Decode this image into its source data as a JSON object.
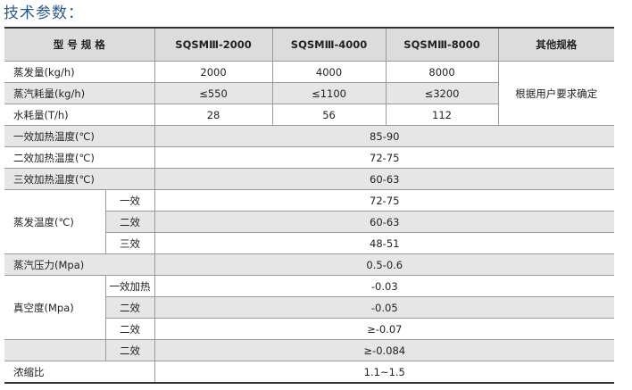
{
  "title": "技术参数：",
  "table": {
    "header": [
      "型 号 规 格",
      "SQSMⅢ-2000",
      "SQSMⅢ-4000",
      "SQSMⅢ-8000",
      "其他规格"
    ],
    "rows": [
      [
        "蒸发量(kg/h)",
        "2000",
        "4000",
        "8000",
        "根据用户要求确定"
      ],
      [
        "蒸汽耗量(kg/h)",
        "≤550",
        "≤1100",
        "≤3200"
      ],
      [
        "水耗量(T/h)",
        "28",
        "56",
        "112"
      ],
      [
        "一效加热温度(℃)",
        "85-90"
      ],
      [
        "二效加热温度(℃)",
        "72-75"
      ],
      [
        "三效加热温度(℃)",
        "60-63"
      ],
      [
        "蒸发温度(℃)",
        "一效",
        "72-75"
      ],
      [
        "二效",
        "60-63"
      ],
      [
        "三效",
        "48-51"
      ],
      [
        "蒸汽压力(Mpa)",
        "0.5-0.6"
      ],
      [
        "真空度(Mpa)",
        "一效加热",
        "-0.03"
      ],
      [
        "二效",
        "-0.05"
      ],
      [
        "二效",
        "≥-0.07"
      ],
      [
        "二效",
        "≥-0.084"
      ],
      [
        "浓缩比",
        "1.1~1.5"
      ]
    ]
  }
}
